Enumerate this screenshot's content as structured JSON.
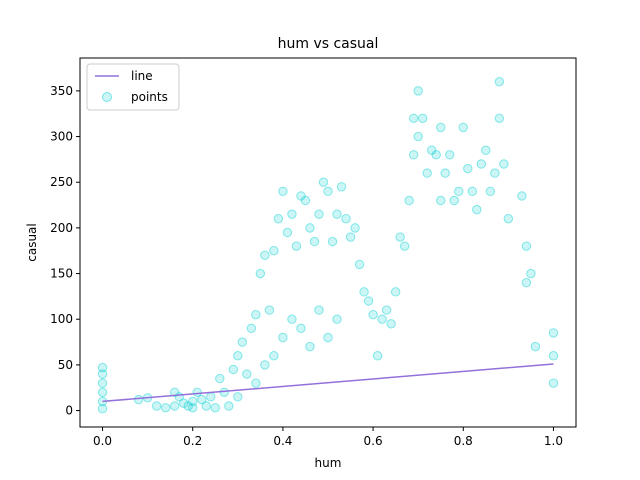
{
  "chart_data": {
    "type": "scatter",
    "title": "hum vs casual",
    "xlabel": "hum",
    "ylabel": "casual",
    "xlim": [
      -0.05,
      1.05
    ],
    "ylim": [
      -18,
      386
    ],
    "xticks": [
      0.0,
      0.2,
      0.4,
      0.6,
      0.8,
      1.0
    ],
    "xtick_labels": [
      "0.0",
      "0.2",
      "0.4",
      "0.6",
      "0.8",
      "1.0"
    ],
    "yticks": [
      0,
      50,
      100,
      150,
      200,
      250,
      300,
      350
    ],
    "ytick_labels": [
      "0",
      "50",
      "100",
      "150",
      "200",
      "250",
      "300",
      "350"
    ],
    "grid": false,
    "legend_position": "top-left",
    "series": [
      {
        "name": "line",
        "kind": "line",
        "color": "#9370db",
        "x": [
          0.0,
          1.0
        ],
        "y": [
          10,
          51
        ]
      },
      {
        "name": "points",
        "kind": "scatter",
        "color": "#00ced1",
        "alpha": 0.2,
        "x": [
          0.0,
          0.0,
          0.0,
          0.0,
          0.0,
          0.0,
          0.08,
          0.1,
          0.12,
          0.14,
          0.16,
          0.16,
          0.17,
          0.18,
          0.19,
          0.2,
          0.2,
          0.21,
          0.22,
          0.23,
          0.24,
          0.25,
          0.26,
          0.27,
          0.28,
          0.29,
          0.3,
          0.3,
          0.31,
          0.32,
          0.33,
          0.34,
          0.34,
          0.35,
          0.36,
          0.36,
          0.37,
          0.38,
          0.38,
          0.39,
          0.4,
          0.4,
          0.41,
          0.42,
          0.42,
          0.43,
          0.44,
          0.44,
          0.45,
          0.46,
          0.46,
          0.47,
          0.48,
          0.48,
          0.49,
          0.5,
          0.5,
          0.51,
          0.52,
          0.52,
          0.53,
          0.54,
          0.55,
          0.56,
          0.57,
          0.58,
          0.59,
          0.6,
          0.61,
          0.62,
          0.63,
          0.64,
          0.65,
          0.66,
          0.67,
          0.68,
          0.69,
          0.69,
          0.7,
          0.7,
          0.71,
          0.72,
          0.73,
          0.74,
          0.75,
          0.75,
          0.76,
          0.77,
          0.78,
          0.79,
          0.8,
          0.81,
          0.82,
          0.83,
          0.84,
          0.85,
          0.86,
          0.87,
          0.88,
          0.88,
          0.89,
          0.9,
          0.93,
          0.94,
          0.94,
          0.95,
          0.96,
          1.0,
          1.0,
          1.0
        ],
        "y": [
          47,
          40,
          30,
          20,
          10,
          2,
          12,
          14,
          5,
          3,
          20,
          5,
          15,
          8,
          5,
          10,
          3,
          20,
          12,
          5,
          15,
          3,
          35,
          20,
          5,
          45,
          60,
          15,
          75,
          40,
          90,
          105,
          30,
          150,
          170,
          50,
          110,
          175,
          60,
          210,
          240,
          80,
          195,
          215,
          100,
          180,
          235,
          90,
          230,
          200,
          70,
          185,
          215,
          110,
          250,
          240,
          80,
          185,
          215,
          100,
          245,
          210,
          190,
          200,
          160,
          130,
          120,
          105,
          60,
          100,
          110,
          95,
          130,
          190,
          180,
          230,
          320,
          280,
          350,
          300,
          320,
          260,
          285,
          280,
          310,
          230,
          260,
          280,
          230,
          240,
          310,
          265,
          240,
          220,
          270,
          285,
          240,
          260,
          360,
          320,
          270,
          210,
          235,
          180,
          140,
          150,
          70,
          85,
          60,
          30
        ]
      }
    ]
  }
}
